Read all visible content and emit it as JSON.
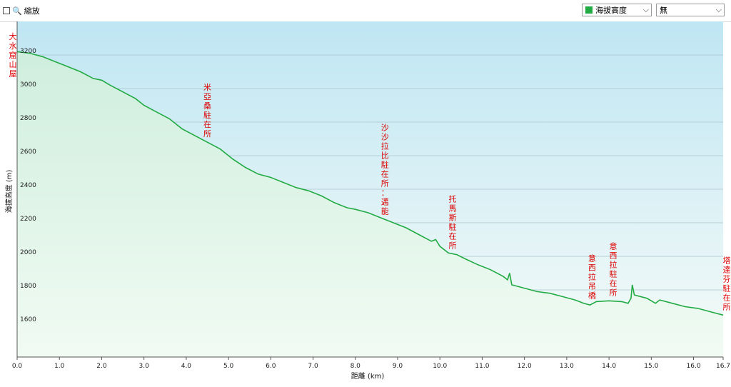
{
  "toolbar": {
    "zoom_label": "縮放",
    "series_select": {
      "value": "海拔高度",
      "color": "#22aa44"
    },
    "compare_select": {
      "value": "無"
    }
  },
  "chart_data": {
    "type": "area",
    "xlabel": "距離 (km)",
    "ylabel": "海拔高度 (m)",
    "xlim": [
      0,
      16.7
    ],
    "ylim": [
      1400,
      3400
    ],
    "xticks": [
      "0.0",
      "1.0",
      "2.0",
      "3.0",
      "4.0",
      "5.0",
      "6.0",
      "7.0",
      "8.0",
      "9.0",
      "10.0",
      "11.0",
      "12.0",
      "13.0",
      "14.0",
      "15.0",
      "16.0",
      "16.7"
    ],
    "yticks": [
      "1600",
      "1800",
      "2000",
      "2200",
      "2400",
      "2600",
      "2800",
      "3000",
      "3200"
    ],
    "grid": true,
    "line_color": "#22aa44",
    "series": [
      {
        "x": [
          0,
          0.3,
          0.6,
          0.9,
          1.2,
          1.5,
          1.8,
          2.0,
          2.2,
          2.5,
          2.8,
          3.0,
          3.3,
          3.6,
          3.9,
          4.2,
          4.5,
          4.8,
          5.1,
          5.4,
          5.7,
          6.0,
          6.3,
          6.6,
          6.9,
          7.2,
          7.5,
          7.8,
          8.0,
          8.3,
          8.6,
          8.9,
          9.2,
          9.5,
          9.8,
          9.9,
          10.0,
          10.2,
          10.4,
          10.6,
          10.9,
          11.2,
          11.5,
          11.6,
          11.65,
          11.7,
          12.0,
          12.3,
          12.6,
          12.9,
          13.2,
          13.4,
          13.55,
          13.7,
          14.0,
          14.3,
          14.45,
          14.52,
          14.55,
          14.6,
          14.9,
          15.1,
          15.2,
          15.5,
          15.8,
          16.1,
          16.4,
          16.7
        ],
        "y": [
          3220,
          3210,
          3190,
          3160,
          3130,
          3100,
          3060,
          3050,
          3020,
          2980,
          2940,
          2900,
          2860,
          2820,
          2760,
          2720,
          2680,
          2640,
          2580,
          2530,
          2490,
          2470,
          2440,
          2410,
          2390,
          2360,
          2320,
          2290,
          2280,
          2260,
          2230,
          2200,
          2170,
          2130,
          2090,
          2100,
          2060,
          2020,
          2010,
          1985,
          1950,
          1920,
          1880,
          1860,
          1900,
          1830,
          1810,
          1790,
          1780,
          1760,
          1740,
          1720,
          1710,
          1730,
          1735,
          1730,
          1720,
          1750,
          1830,
          1770,
          1750,
          1720,
          1740,
          1720,
          1700,
          1690,
          1670,
          1650
        ]
      }
    ],
    "annotations": [
      {
        "x": 0.0,
        "text": "大水窟山屋"
      },
      {
        "x": 4.5,
        "text": "米亞桑駐在所"
      },
      {
        "x": 8.7,
        "text": "沙沙拉比駐在所：邁能"
      },
      {
        "x": 10.3,
        "text": "托馬斯駐在所"
      },
      {
        "x": 13.6,
        "text": "意西拉吊橋"
      },
      {
        "x": 14.1,
        "text": "意西拉駐在所"
      },
      {
        "x": 16.7,
        "text": "塔達芬駐在所"
      }
    ]
  }
}
